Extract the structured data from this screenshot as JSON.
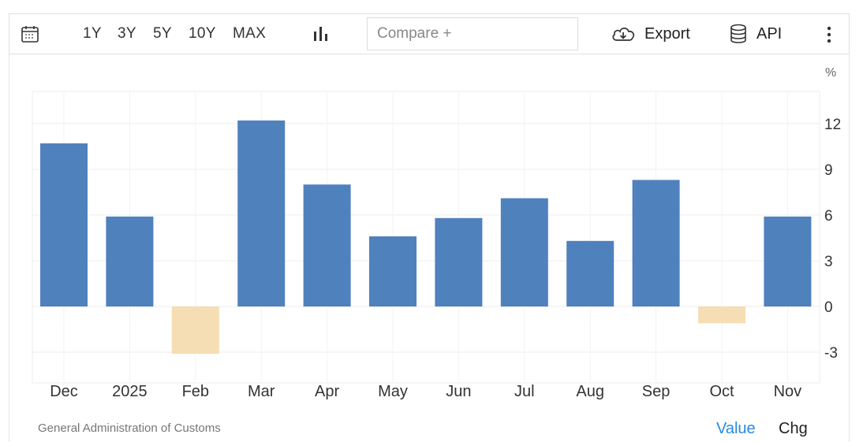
{
  "toolbar": {
    "ranges": [
      "1Y",
      "3Y",
      "5Y",
      "10Y",
      "MAX"
    ],
    "compare_placeholder": "Compare +",
    "export_label": "Export",
    "api_label": "API"
  },
  "footer": {
    "source": "General Administration of Customs",
    "tab_value": "Value",
    "tab_chg": "Chg"
  },
  "colors": {
    "positive": "#4f81bd",
    "negative": "#f5deb3",
    "grid": "#eeeeee",
    "accent": "#2a8ae0"
  },
  "chart_data": {
    "type": "bar",
    "unit_label": "%",
    "categories": [
      "Dec",
      "2025",
      "Feb",
      "Mar",
      "Apr",
      "May",
      "Jun",
      "Jul",
      "Aug",
      "Sep",
      "Oct",
      "Nov"
    ],
    "values": [
      10.7,
      5.9,
      -3.1,
      12.2,
      8.0,
      4.6,
      5.8,
      7.1,
      4.3,
      8.3,
      -1.1,
      5.9
    ],
    "yticks": [
      12,
      9,
      6,
      3,
      0,
      -3
    ],
    "ylim": [
      -5,
      14
    ],
    "axis_side": "right",
    "grid": true
  }
}
